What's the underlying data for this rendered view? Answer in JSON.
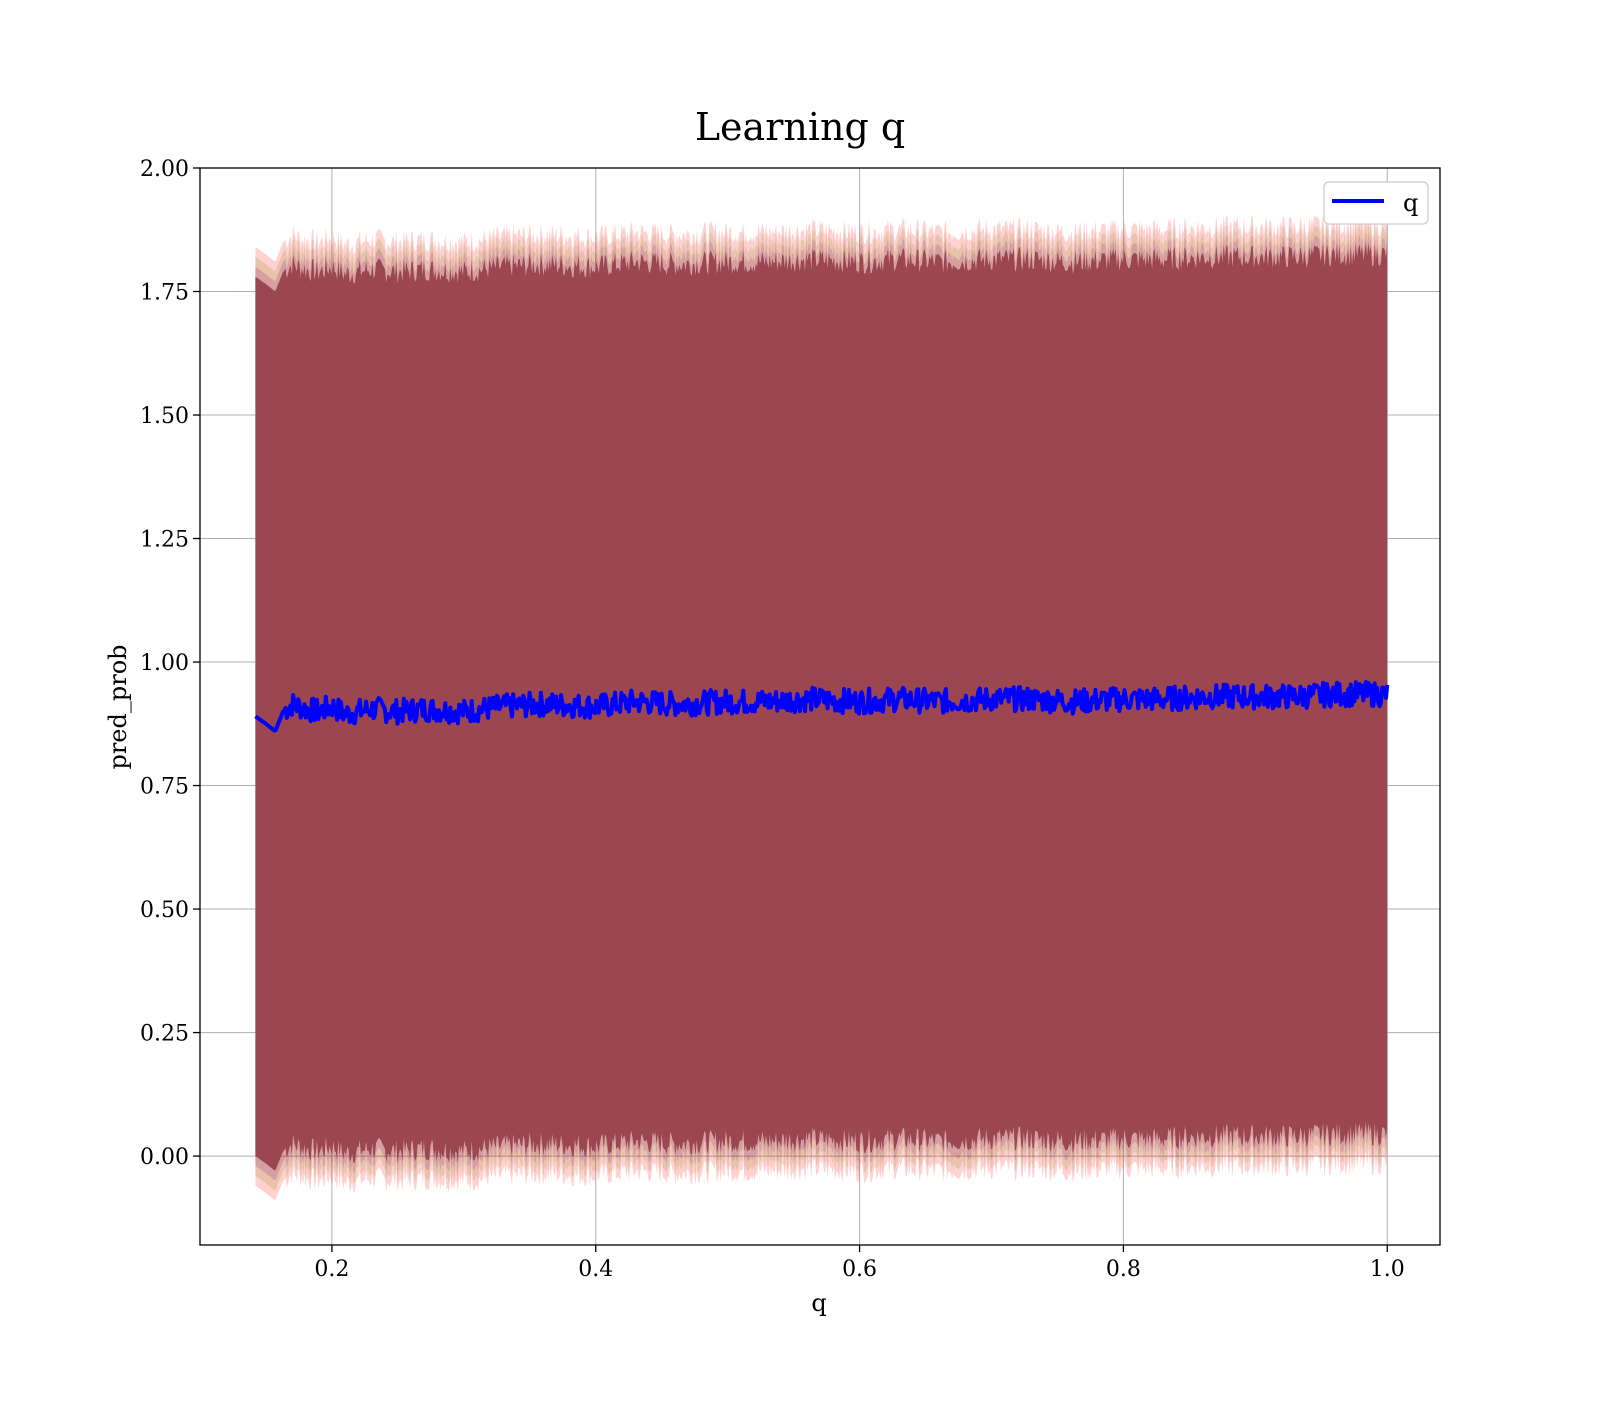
{
  "chart_data": {
    "type": "line",
    "title": "Learning q",
    "xlabel": "q",
    "ylabel": "pred_prob",
    "xlim": [
      0.1,
      1.04
    ],
    "ylim": [
      -0.18,
      2.0
    ],
    "x_ticks": [
      0.2,
      0.4,
      0.6,
      0.8,
      1.0
    ],
    "x_tick_labels": [
      "0.2",
      "0.4",
      "0.6",
      "0.8",
      "1.0"
    ],
    "y_ticks": [
      0.0,
      0.25,
      0.5,
      0.75,
      1.0,
      1.25,
      1.5,
      1.75,
      2.0
    ],
    "y_tick_labels": [
      "0.00",
      "0.25",
      "0.50",
      "0.75",
      "1.00",
      "1.25",
      "1.50",
      "1.75",
      "2.00"
    ],
    "grid": true,
    "legend_position": "top-right",
    "series": [
      {
        "name": "q",
        "color": "#0000ff",
        "x": [
          0.142,
          0.15,
          0.157,
          0.163,
          0.17,
          0.18,
          0.19,
          0.2,
          0.21,
          0.22,
          0.23,
          0.25,
          0.27,
          0.3,
          0.33,
          0.36,
          0.4,
          0.43,
          0.46,
          0.5,
          0.53,
          0.56,
          0.6,
          0.63,
          0.66,
          0.7,
          0.73,
          0.76,
          0.8,
          0.83,
          0.86,
          0.9,
          0.93,
          0.96,
          1.0
        ],
        "values": [
          0.89,
          0.875,
          0.86,
          0.9,
          0.915,
          0.905,
          0.9,
          0.91,
          0.895,
          0.9,
          0.905,
          0.9,
          0.905,
          0.9,
          0.91,
          0.915,
          0.91,
          0.92,
          0.915,
          0.92,
          0.92,
          0.925,
          0.92,
          0.925,
          0.92,
          0.925,
          0.925,
          0.92,
          0.925,
          0.925,
          0.93,
          0.93,
          0.93,
          0.935,
          0.935
        ]
      }
    ],
    "bands": [
      {
        "upper_offset": 0.95,
        "lower_offset": -0.95,
        "color": "#ff0000",
        "opacity": 0.3
      },
      {
        "upper_offset": 0.93,
        "lower_offset": -0.93,
        "color": "#808000",
        "opacity": 0.3
      },
      {
        "upper_offset": 0.91,
        "lower_offset": -0.91,
        "color": "#800080",
        "opacity": 0.3
      },
      {
        "upper_offset": 0.89,
        "lower_offset": -0.89,
        "color": "#8b2c3c",
        "opacity": 0.45
      }
    ],
    "band_fill_color": "#a1717a"
  }
}
